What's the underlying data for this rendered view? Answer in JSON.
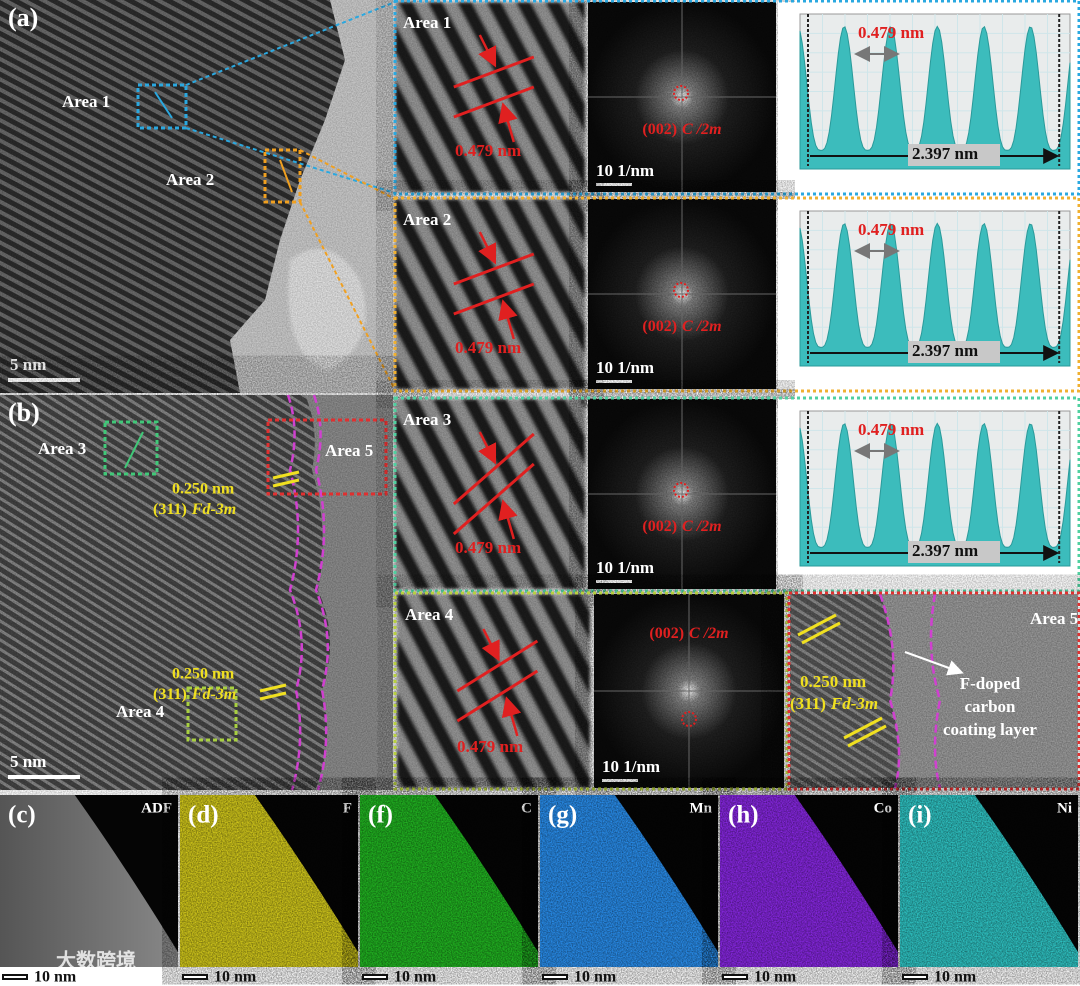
{
  "panel_a": {
    "label": "(a)",
    "scale_bar": "5 nm",
    "areas": [
      "Area 1",
      "Area 2"
    ]
  },
  "panel_b": {
    "label": "(b)",
    "scale_bar": "5 nm",
    "areas": [
      "Area 3",
      "Area 5",
      "Area 4"
    ],
    "annotations": [
      {
        "spacing": "0.250 nm",
        "plane": "(311)",
        "space_group": "Fd-3m"
      },
      {
        "spacing": "0.250 nm",
        "plane": "(311)",
        "space_group": "Fd-3m"
      }
    ]
  },
  "insets": [
    {
      "area": "Area 1",
      "spacing": "0.479 nm",
      "fft_plane": "(002)",
      "fft_group": "C /2m",
      "fft_scale": "10 1/nm",
      "profile_spacing": "0.479 nm",
      "profile_total": "2.397 nm"
    },
    {
      "area": "Area 2",
      "spacing": "0.479 nm",
      "fft_plane": "(002)",
      "fft_group": "C /2m",
      "fft_scale": "10 1/nm",
      "profile_spacing": "0.479 nm",
      "profile_total": "2.397 nm"
    },
    {
      "area": "Area 3",
      "spacing": "0.479 nm",
      "fft_plane": "(002)",
      "fft_group": "C /2m",
      "fft_scale": "10 1/nm",
      "profile_spacing": "0.479 nm",
      "profile_total": "2.397 nm"
    },
    {
      "area": "Area 4",
      "spacing": "0.479 nm",
      "fft_plane": "(002)",
      "fft_group": "C /2m",
      "fft_scale": "10 1/nm"
    }
  ],
  "area5": {
    "label": "Area 5",
    "spacing": "0.250 nm",
    "plane": "(311)",
    "space_group": "Fd-3m",
    "description": [
      "F-doped",
      "carbon",
      "coating layer"
    ]
  },
  "maps": [
    {
      "label": "(c)",
      "element": "ADF",
      "scale_bar": "10 nm"
    },
    {
      "label": "(d)",
      "element": "F",
      "scale_bar": "10 nm"
    },
    {
      "label": "(f)",
      "element": "C",
      "scale_bar": "10 nm"
    },
    {
      "label": "(g)",
      "element": "Mn",
      "scale_bar": "10 nm"
    },
    {
      "label": "(h)",
      "element": "Co",
      "scale_bar": "10 nm"
    },
    {
      "label": "(i)",
      "element": "Ni",
      "scale_bar": "10 nm"
    }
  ],
  "watermark": "大数跨境"
}
